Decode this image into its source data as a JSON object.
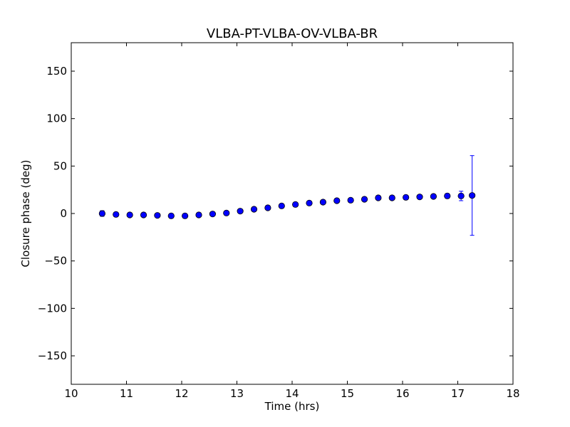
{
  "chart_data": {
    "type": "scatter",
    "title": "VLBA-PT-VLBA-OV-VLBA-BR",
    "xlabel": "Time (hrs)",
    "ylabel": "Closure phase (deg)",
    "xlim": [
      10,
      18
    ],
    "ylim": [
      -180,
      180
    ],
    "xticks": [
      10,
      11,
      12,
      13,
      14,
      15,
      16,
      17,
      18
    ],
    "yticks": [
      150,
      100,
      50,
      0,
      -50,
      -100,
      -150
    ],
    "ytick_labels": [
      "150",
      "100",
      "50",
      "0",
      "−50",
      "−100",
      "−150"
    ],
    "grid": false,
    "marker_color": "#0000ff",
    "errorbar_color": "#0000ff",
    "points": [
      {
        "x": 10.56,
        "y": 0.0,
        "err": 3.0
      },
      {
        "x": 10.81,
        "y": -1.0,
        "err": 1.2
      },
      {
        "x": 11.06,
        "y": -1.5,
        "err": 1.0
      },
      {
        "x": 11.31,
        "y": -1.5,
        "err": 1.0
      },
      {
        "x": 11.56,
        "y": -2.0,
        "err": 1.0
      },
      {
        "x": 11.81,
        "y": -2.5,
        "err": 1.0
      },
      {
        "x": 12.06,
        "y": -2.5,
        "err": 1.0
      },
      {
        "x": 12.31,
        "y": -1.5,
        "err": 1.0
      },
      {
        "x": 12.56,
        "y": -0.5,
        "err": 1.0
      },
      {
        "x": 12.81,
        "y": 0.5,
        "err": 1.0
      },
      {
        "x": 13.06,
        "y": 2.5,
        "err": 1.0
      },
      {
        "x": 13.31,
        "y": 4.5,
        "err": 1.0
      },
      {
        "x": 13.56,
        "y": 6.0,
        "err": 1.0
      },
      {
        "x": 13.81,
        "y": 8.0,
        "err": 1.0
      },
      {
        "x": 14.06,
        "y": 9.5,
        "err": 1.0
      },
      {
        "x": 14.31,
        "y": 11.0,
        "err": 1.0
      },
      {
        "x": 14.56,
        "y": 12.0,
        "err": 1.0
      },
      {
        "x": 14.81,
        "y": 13.5,
        "err": 1.0
      },
      {
        "x": 15.06,
        "y": 14.0,
        "err": 1.0
      },
      {
        "x": 15.31,
        "y": 15.0,
        "err": 1.0
      },
      {
        "x": 15.56,
        "y": 16.5,
        "err": 1.0
      },
      {
        "x": 15.81,
        "y": 16.5,
        "err": 1.0
      },
      {
        "x": 16.06,
        "y": 17.0,
        "err": 1.0
      },
      {
        "x": 16.31,
        "y": 17.5,
        "err": 1.0
      },
      {
        "x": 16.56,
        "y": 18.0,
        "err": 1.0
      },
      {
        "x": 16.81,
        "y": 18.5,
        "err": 2.5
      },
      {
        "x": 17.06,
        "y": 18.5,
        "err": 5.0
      },
      {
        "x": 17.26,
        "y": 19.0,
        "err": 42.0
      }
    ]
  }
}
